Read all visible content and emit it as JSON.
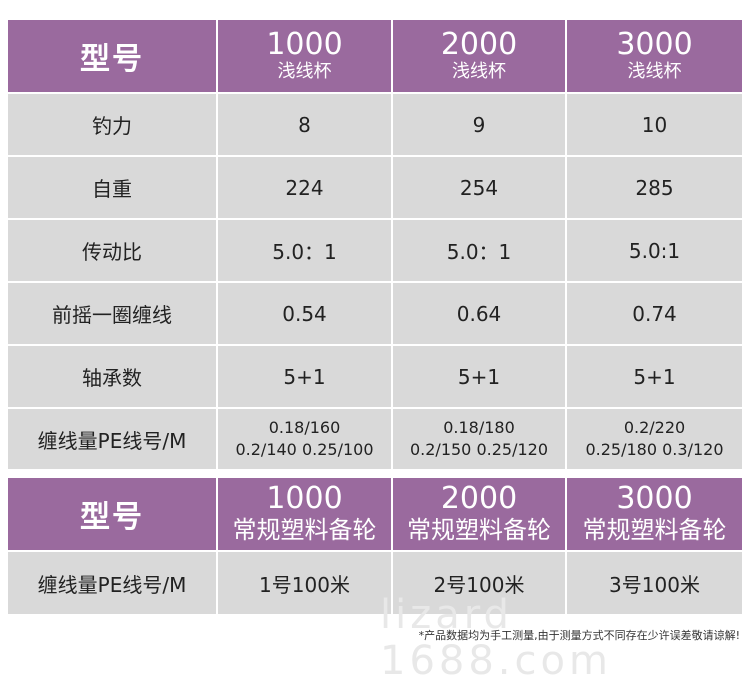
{
  "table1": {
    "header": {
      "label": "型号",
      "models": [
        {
          "num": "1000",
          "sub": "浅线杯"
        },
        {
          "num": "2000",
          "sub": "浅线杯"
        },
        {
          "num": "3000",
          "sub": "浅线杯"
        }
      ]
    },
    "rows": [
      {
        "label": "钓力",
        "values": [
          "8",
          "9",
          "10"
        ]
      },
      {
        "label": "自重",
        "values": [
          "224",
          "254",
          "285"
        ]
      },
      {
        "label": "传动比",
        "values": [
          "5.0：1",
          "5.0：1",
          "5.0:1"
        ]
      },
      {
        "label": "前摇一圈缠线",
        "values": [
          "0.54",
          "0.64",
          "0.74"
        ]
      },
      {
        "label": "轴承数",
        "values": [
          "5+1",
          "5+1",
          "5+1"
        ]
      }
    ],
    "capacity": {
      "label": "缠线量PE线号/M",
      "values": [
        [
          "0.18/160",
          "0.2/140  0.25/100"
        ],
        [
          "0.18/180",
          "0.2/150 0.25/120"
        ],
        [
          "0.2/220",
          "0.25/180 0.3/120"
        ]
      ]
    }
  },
  "table2": {
    "header": {
      "label": "型号",
      "models": [
        {
          "num": "1000",
          "sub": "常规塑料备轮"
        },
        {
          "num": "2000",
          "sub": "常规塑料备轮"
        },
        {
          "num": "3000",
          "sub": "常规塑料备轮"
        }
      ]
    },
    "row": {
      "label": "缠线量PE线号/M",
      "values": [
        "1号100米",
        "2号100米",
        "3号100米"
      ]
    }
  },
  "watermark": "lizard 1688.com",
  "footnote": "*产品数据均为手工测量,由于测量方式不同存在少许误差敬请谅解!"
}
